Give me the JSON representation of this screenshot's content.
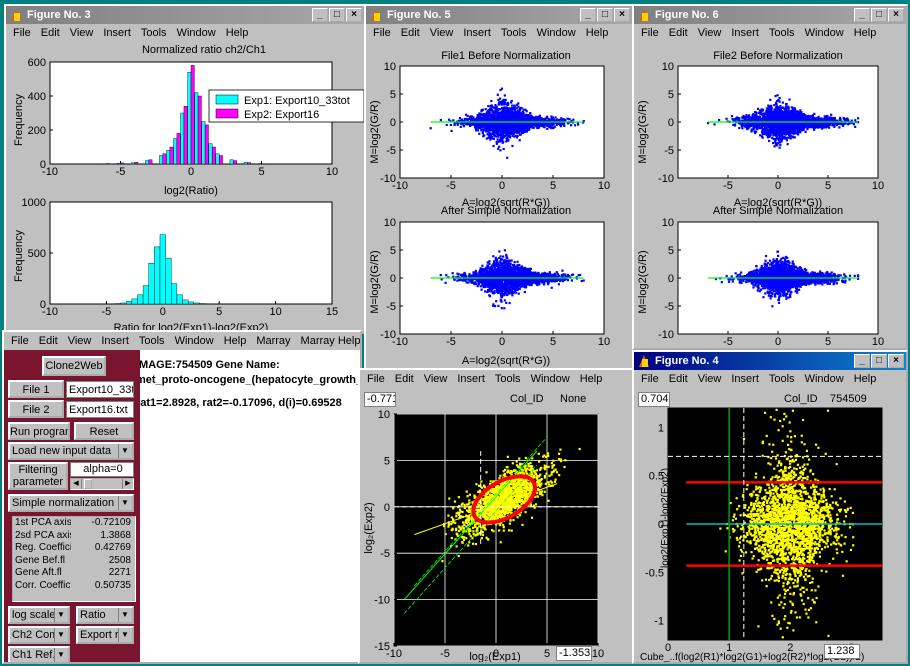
{
  "windows": {
    "fig3": {
      "title": "Figure No. 3",
      "menu": [
        "File",
        "Edit",
        "View",
        "Insert",
        "Tools",
        "Window",
        "Help"
      ],
      "top_chart_title": "Normalized ratio ch2/Ch1",
      "top_xlabel": "log2(Ratio)",
      "top_ylabel": "Frequency",
      "legend": [
        "Exp1: Export10_33tot",
        "Exp2: Export16"
      ],
      "bottom_xlabel": "Ratio for log2(Exp1)-log2(Exp2)",
      "bottom_ylabel": "Frequency"
    },
    "fig5": {
      "title": "Figure No. 5",
      "menu": [
        "File",
        "Edit",
        "View",
        "Insert",
        "Tools",
        "Window",
        "Help"
      ],
      "top_title": "File1 Before Normalization",
      "top_xlabel": "A=log2(sqrt(R*G))",
      "top_ylabel": "M=log2(G/R)",
      "bottom_title": "After Simple Normalization",
      "bottom_xlabel": "A=log2(sqrt(R*G))",
      "bottom_ylabel": "M=log2(G/R)"
    },
    "fig6": {
      "title": "Figure No. 6",
      "menu": [
        "File",
        "Edit",
        "View",
        "Insert",
        "Tools",
        "Window",
        "Help"
      ],
      "top_title": "File2 Before Normalization",
      "top_xlabel": "A=log2(sqrt(R*G))",
      "top_ylabel": "M=log2(G/R)",
      "bottom_title": "After Simple Normalization",
      "bottom_ylabel": "M=log2(G/R)"
    },
    "figPCA": {
      "menu": [
        "File",
        "Edit",
        "View",
        "Insert",
        "Tools",
        "Window",
        "Help"
      ],
      "coord_readout": "-0.771",
      "col_id_label": "Col_ID",
      "col_id_value": "None",
      "x_readout": "-1.353",
      "xlabel": "log₂(Exp1)",
      "ylabel": "log₂(Exp2)"
    },
    "fig4": {
      "title": "Figure No. 4",
      "menu": [
        "File",
        "Edit",
        "View",
        "Insert",
        "Tools",
        "Window",
        "Help"
      ],
      "coord_readout": "0.704",
      "col_id_label": "Col_ID",
      "col_id_value": "754509",
      "x_readout": "1.238",
      "xlabel": "Cube_..f(log2(R1)*log2(G1)+log2(R2)*log2(G2))/2)",
      "ylabel": "log2(Exp1)-log2(Exp2)"
    },
    "gui": {
      "menu": [
        "File",
        "Edit",
        "View",
        "Insert",
        "Tools",
        "Window",
        "Help",
        "Marray",
        "Marray Help",
        "Ma"
      ],
      "clone2web": "Clone2Web",
      "file1_btn": "File 1",
      "file1_name": "Export10_33tot",
      "file2_btn": "File 2",
      "file2_name": "Export16.txt",
      "run_btn": "Run program",
      "reset_btn": "Reset",
      "load_popup": "Load new input data",
      "filter_btn": "Filtering parameter",
      "alpha": "alpha=0",
      "norm_popup": "Simple normalization",
      "info_line1": "IMAGE:754509   Gene Name:",
      "info_line2": "met_proto-oncogene_(hepatocyte_growth_fa",
      "info_line3": "rat1=2.8928, rat2=-0.17096, d(i)=0.69528",
      "stats": [
        {
          "label": "1st PCA axis",
          "value": "-0.72109"
        },
        {
          "label": "2sd PCA axis",
          "value": "1.3868"
        },
        {
          "label": "Reg. Coeffici",
          "value": "0.42769"
        },
        {
          "label": "Gene Bef.fl",
          "value": "2508"
        },
        {
          "label": "Gene Aft.fl",
          "value": "2271"
        },
        {
          "label": "Corr. Coeffic",
          "value": "0.50735"
        }
      ],
      "scale_popup": "log scale",
      "ratio_popup": "Ratio",
      "ch2_popup": "Ch2 Comp",
      "export_popup": "Export re",
      "ch1_popup": "Ch1 Ref."
    }
  },
  "colors": {
    "cyan_bar": "#00ffff",
    "magenta_bar": "#ff00ff",
    "blue_points": "#0000ff",
    "yellow_points": "#ffff00",
    "green_line": "#00ff00",
    "red_line": "#ff0000",
    "panel_maroon": "#7a1530"
  },
  "chart_data": [
    {
      "type": "bar",
      "id": "hist_top",
      "title": "Normalized ratio ch2/Ch1",
      "xlabel": "log2(Ratio)",
      "ylabel": "Frequency",
      "xlim": [
        -10,
        10
      ],
      "ylim": [
        0,
        600
      ],
      "xticks": [
        -10,
        -5,
        0,
        5,
        10
      ],
      "yticks": [
        0,
        200,
        400,
        600
      ],
      "series": [
        {
          "name": "Exp1: Export10_33tot",
          "x": [
            -6,
            -5,
            -4,
            -3,
            -2,
            -1.5,
            -1,
            -0.5,
            0,
            0.5,
            1,
            1.5,
            2,
            3,
            4,
            5
          ],
          "values": [
            2,
            5,
            8,
            20,
            50,
            80,
            150,
            300,
            540,
            420,
            250,
            120,
            60,
            25,
            10,
            3
          ]
        },
        {
          "name": "Exp2: Export16",
          "x": [
            -6,
            -5,
            -4,
            -3,
            -2,
            -1.5,
            -1,
            -0.5,
            0,
            0.5,
            1,
            1.5,
            2,
            3,
            4,
            5
          ],
          "values": [
            3,
            6,
            10,
            25,
            60,
            100,
            180,
            340,
            580,
            400,
            230,
            100,
            50,
            20,
            8,
            2
          ]
        }
      ]
    },
    {
      "type": "bar",
      "id": "hist_bottom",
      "xlabel": "Ratio for log2(Exp1)-log2(Exp2)",
      "ylabel": "Frequency",
      "xlim": [
        -10,
        15
      ],
      "ylim": [
        0,
        1000
      ],
      "xticks": [
        -10,
        -5,
        0,
        5,
        10,
        15
      ],
      "yticks": [
        0,
        500,
        1000
      ],
      "x": [
        -4,
        -3.5,
        -3,
        -2.5,
        -2,
        -1.5,
        -1,
        -0.5,
        0,
        0.5,
        1,
        1.5,
        2,
        2.5,
        3,
        3.5,
        4
      ],
      "values": [
        5,
        10,
        25,
        50,
        90,
        180,
        400,
        560,
        680,
        450,
        200,
        90,
        40,
        20,
        10,
        5,
        3
      ]
    },
    {
      "type": "scatter",
      "id": "fig5_top",
      "title": "File1 Before Normalization",
      "xlim": [
        -10,
        10
      ],
      "ylim": [
        -10,
        10
      ],
      "xticks": [
        -10,
        -5,
        0,
        5,
        10
      ],
      "yticks": [
        -10,
        -5,
        0,
        5,
        10
      ]
    },
    {
      "type": "scatter",
      "id": "fig5_bottom",
      "title": "After Simple Normalization",
      "xlabel": "A=log2(sqrt(R*G))",
      "xlim": [
        -10,
        10
      ],
      "ylim": [
        -10,
        10
      ],
      "xticks": [
        -10,
        -5,
        0,
        5,
        10
      ],
      "yticks": [
        -10,
        -5,
        0,
        5,
        10
      ]
    },
    {
      "type": "scatter",
      "id": "fig6_top",
      "title": "File2 Before Normalization",
      "xlim": [
        -10,
        10
      ],
      "ylim": [
        -10,
        10
      ],
      "xticks": [
        -5,
        0,
        5,
        10
      ],
      "yticks": [
        -10,
        -5,
        0,
        5,
        10
      ]
    },
    {
      "type": "scatter",
      "id": "fig6_bottom",
      "title": "After Simple Normalization",
      "xlim": [
        -10,
        10
      ],
      "ylim": [
        -10,
        10
      ],
      "xticks": [
        -5,
        0,
        5,
        10
      ],
      "yticks": [
        -10,
        -5,
        0,
        5,
        10
      ]
    },
    {
      "type": "scatter",
      "id": "pca",
      "xlim": [
        -10,
        10
      ],
      "ylim": [
        -15,
        10
      ],
      "xticks": [
        -10,
        -5,
        0,
        5,
        10
      ],
      "yticks": [
        -15,
        -10,
        -5,
        0,
        5,
        10
      ]
    },
    {
      "type": "scatter",
      "id": "fig4",
      "xlim": [
        0,
        3.5
      ],
      "ylim": [
        -1.2,
        1.2
      ],
      "xticks": [
        0,
        1,
        2,
        3
      ],
      "yticks": [
        -1,
        -0.5,
        0,
        0.5,
        1
      ]
    }
  ]
}
